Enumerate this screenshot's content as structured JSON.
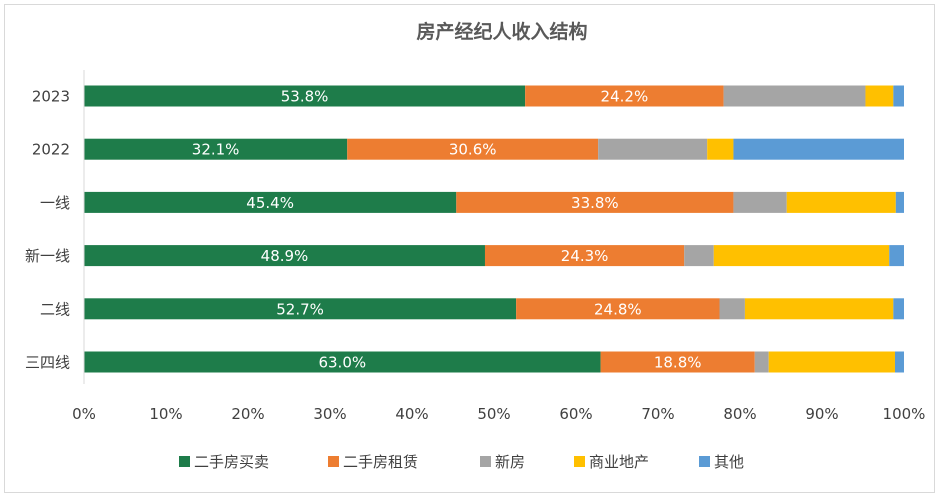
{
  "chart_data": {
    "type": "bar",
    "orientation": "horizontal",
    "stacked": "percent",
    "title": "房产经纪人收入结构",
    "categories": [
      "2023",
      "2022",
      "一线",
      "新一线",
      "二线",
      "三四线"
    ],
    "series": [
      {
        "name": "二手房买卖",
        "color": "#1e7c4a",
        "values": [
          53.8,
          32.1,
          45.4,
          48.9,
          52.7,
          63.0
        ],
        "labels": [
          "53.8%",
          "32.1%",
          "45.4%",
          "48.9%",
          "52.7%",
          "63.0%"
        ]
      },
      {
        "name": "二手房租赁",
        "color": "#ed7d31",
        "values": [
          24.2,
          30.6,
          33.8,
          24.3,
          24.8,
          18.8
        ],
        "labels": [
          "24.2%",
          "30.6%",
          "33.8%",
          "24.3%",
          "24.8%",
          "18.8%"
        ]
      },
      {
        "name": "新房",
        "color": "#a5a5a5",
        "values": [
          17.3,
          13.3,
          6.5,
          3.6,
          3.1,
          1.7
        ],
        "labels": []
      },
      {
        "name": "商业地产",
        "color": "#ffc000",
        "values": [
          3.4,
          3.2,
          13.3,
          21.4,
          18.1,
          15.4
        ],
        "labels": []
      },
      {
        "name": "其他",
        "color": "#5b9bd5",
        "values": [
          1.3,
          20.8,
          1.0,
          1.8,
          1.3,
          1.1
        ],
        "labels": []
      }
    ],
    "xlim": [
      0,
      100
    ],
    "xticks": [
      "0%",
      "10%",
      "20%",
      "30%",
      "40%",
      "50%",
      "60%",
      "70%",
      "80%",
      "90%",
      "100%"
    ],
    "grid": false,
    "legend": "bottom"
  }
}
